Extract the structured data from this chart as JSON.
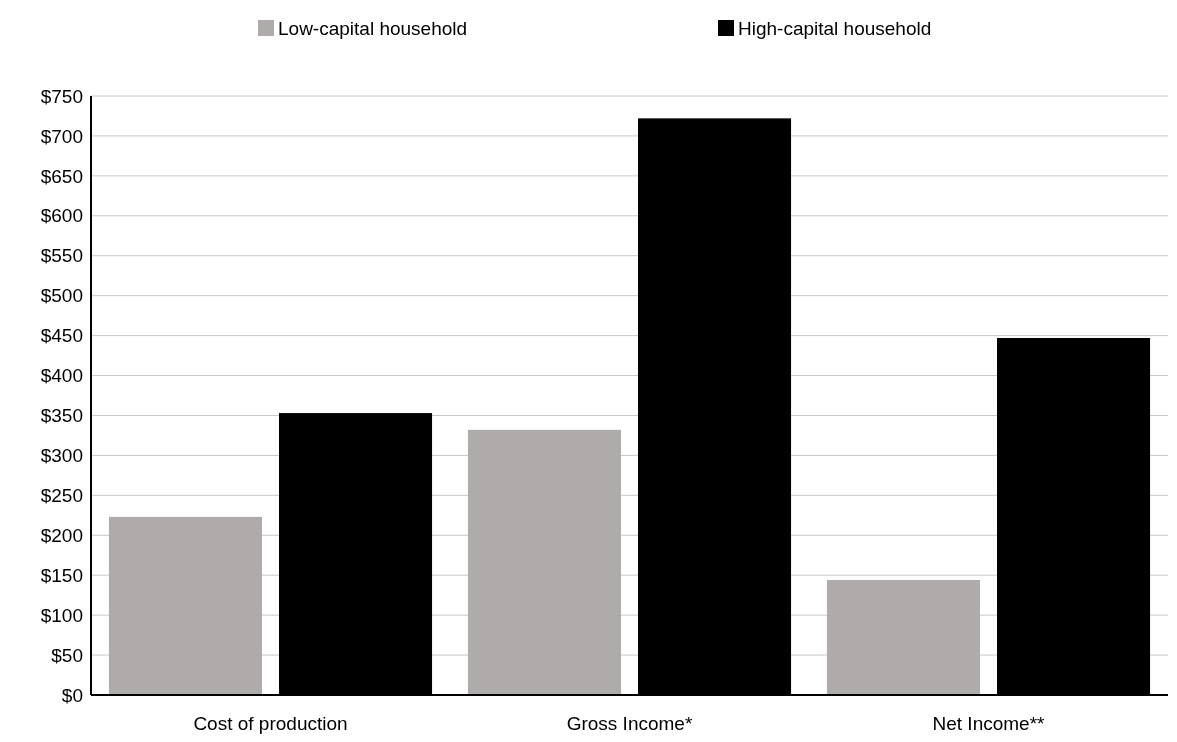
{
  "chart_data": {
    "type": "bar",
    "categories": [
      "Cost of production",
      "Gross Income*",
      "Net Income**"
    ],
    "series": [
      {
        "name": "Low-capital household",
        "color": "#afabab",
        "values": [
          223,
          332,
          144
        ]
      },
      {
        "name": "High-capital household",
        "color": "#000000",
        "values": [
          353,
          722,
          447
        ]
      }
    ],
    "ylim": [
      0,
      750
    ],
    "yticks": [
      {
        "value": 0,
        "label": "$0"
      },
      {
        "value": 50,
        "label": "$50"
      },
      {
        "value": 100,
        "label": "$100"
      },
      {
        "value": 150,
        "label": "$150"
      },
      {
        "value": 200,
        "label": "$200"
      },
      {
        "value": 250,
        "label": "$250"
      },
      {
        "value": 300,
        "label": "$300"
      },
      {
        "value": 350,
        "label": "$350"
      },
      {
        "value": 400,
        "label": "$400"
      },
      {
        "value": 450,
        "label": "$450"
      },
      {
        "value": 500,
        "label": "$500"
      },
      {
        "value": 550,
        "label": "$550"
      },
      {
        "value": 600,
        "label": "$600"
      },
      {
        "value": 650,
        "label": "$650"
      },
      {
        "value": 700,
        "label": "$700"
      },
      {
        "value": 750,
        "label": "$750"
      }
    ],
    "grid": "y",
    "legend": "top"
  }
}
